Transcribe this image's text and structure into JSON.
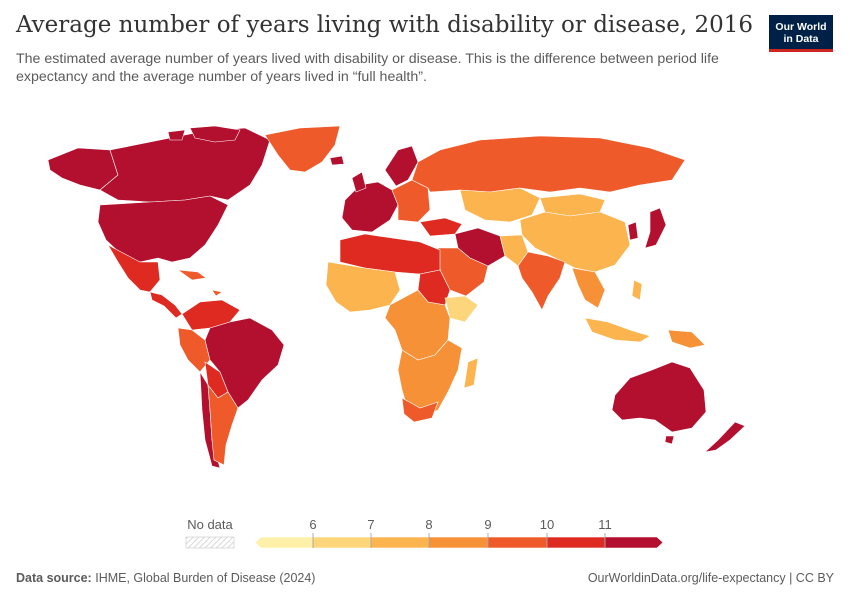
{
  "header": {
    "title": "Average number of years living with disability or disease, 2016",
    "subtitle": "The estimated average number of years lived with disability or disease. This is the difference between period life expectancy and the average number of years lived in “full health”."
  },
  "logo": {
    "line1": "Our World",
    "line2": "in Data"
  },
  "legend": {
    "no_data_label": "No data",
    "ticks": [
      "6",
      "7",
      "8",
      "9",
      "10",
      "11"
    ],
    "colors": [
      "#fef0a8",
      "#fdd57a",
      "#fcb54e",
      "#f79138",
      "#ef5a2b",
      "#df2a22",
      "#b30f2e"
    ]
  },
  "footer": {
    "source_label": "Data source:",
    "source_text": "IHME, Global Burden of Disease (2024)",
    "url": "OurWorldinData.org/life-expectancy | CC BY"
  }
}
